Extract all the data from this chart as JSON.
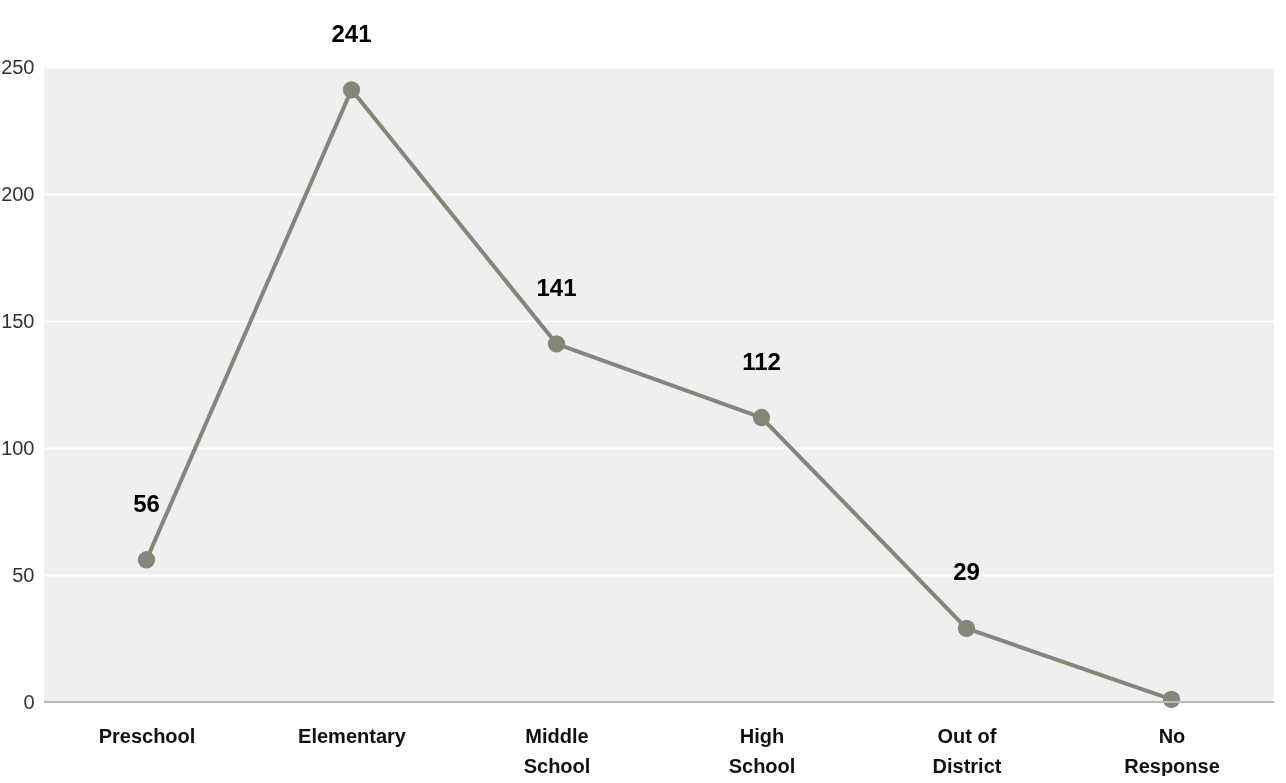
{
  "chart_data": {
    "type": "line",
    "categories": [
      "Preschool",
      "Elementary",
      "Middle School",
      "High School",
      "Out of District",
      "No Response"
    ],
    "series": [
      {
        "color": "#85857a",
        "values": [
          56,
          241,
          141,
          112,
          29,
          1
        ],
        "value_labels": [
          "56",
          "241",
          "141",
          "112",
          "29",
          null
        ]
      }
    ],
    "ylim": [
      0,
      250
    ],
    "yticks": [
      0,
      50,
      100,
      150,
      200,
      250
    ],
    "grid": "y",
    "marker": "circle",
    "line_style": "solid"
  }
}
